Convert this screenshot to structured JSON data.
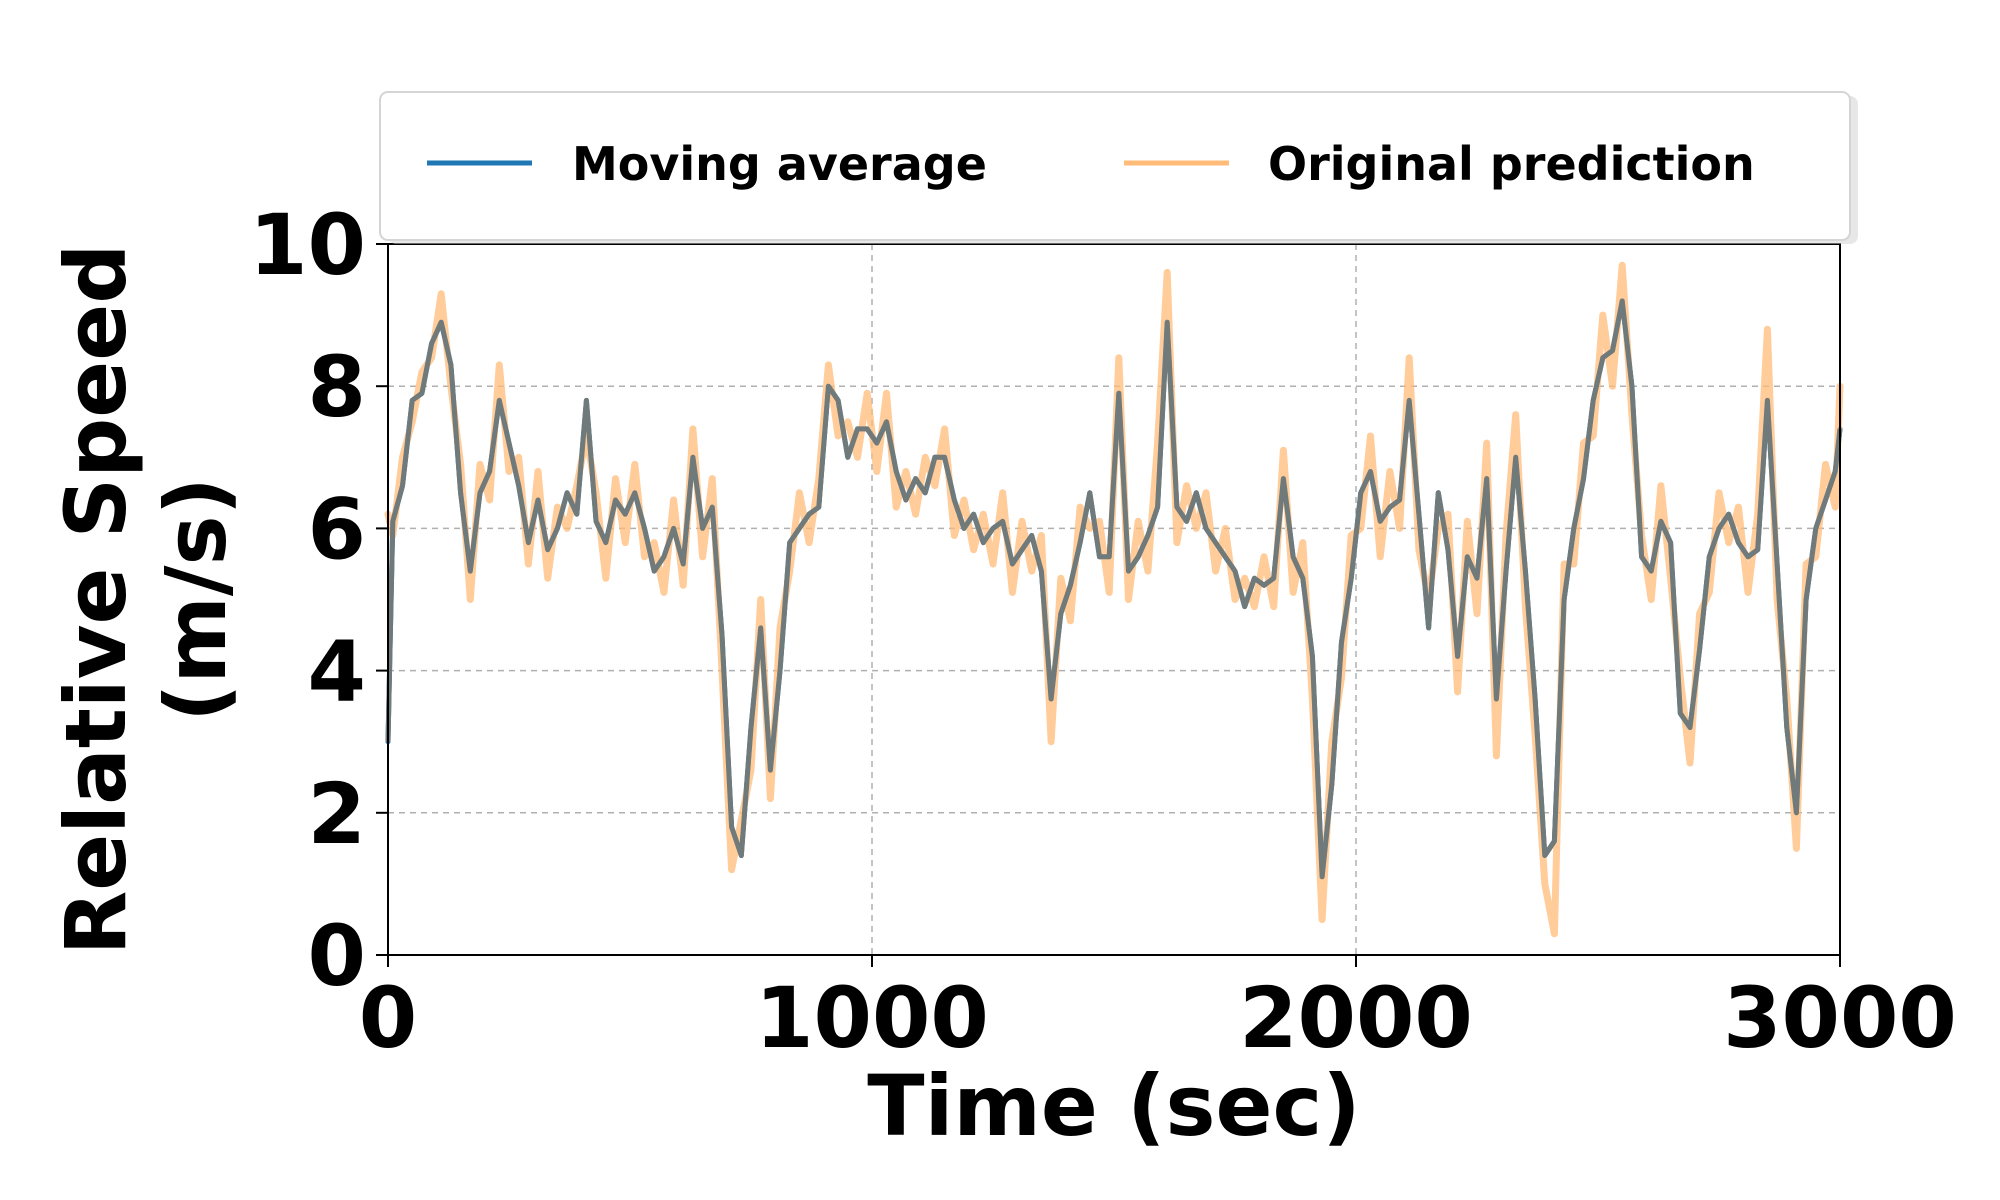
{
  "chart_data": {
    "type": "line",
    "title": "",
    "xlabel": "Time (sec)",
    "ylabel_lines": [
      "Relative Speed",
      "(m/s)"
    ],
    "xlim": [
      0,
      3000
    ],
    "ylim": [
      0,
      10
    ],
    "xticks": [
      0,
      1000,
      2000,
      3000
    ],
    "yticks": [
      0,
      2,
      4,
      6,
      8,
      10
    ],
    "xtick_labels": [
      "0",
      "1000",
      "2000",
      "3000"
    ],
    "ytick_labels": [
      "0",
      "2",
      "4",
      "6",
      "8",
      "10"
    ],
    "grid": true,
    "legend": {
      "position": "top",
      "columns": 2
    },
    "series": [
      {
        "name": "Moving average",
        "color": "#1f77b4",
        "x": [
          0,
          10,
          30,
          50,
          70,
          90,
          110,
          130,
          150,
          170,
          190,
          210,
          230,
          250,
          270,
          290,
          310,
          330,
          350,
          370,
          390,
          410,
          430,
          450,
          470,
          490,
          510,
          530,
          550,
          570,
          590,
          610,
          630,
          650,
          670,
          690,
          710,
          730,
          750,
          770,
          790,
          810,
          830,
          850,
          870,
          890,
          910,
          930,
          950,
          970,
          990,
          1010,
          1030,
          1050,
          1070,
          1090,
          1110,
          1130,
          1150,
          1170,
          1190,
          1210,
          1230,
          1250,
          1270,
          1290,
          1310,
          1330,
          1350,
          1370,
          1390,
          1410,
          1430,
          1450,
          1470,
          1490,
          1510,
          1530,
          1550,
          1570,
          1590,
          1610,
          1630,
          1650,
          1670,
          1690,
          1710,
          1730,
          1750,
          1770,
          1790,
          1810,
          1830,
          1850,
          1870,
          1890,
          1910,
          1930,
          1950,
          1970,
          1990,
          2010,
          2030,
          2050,
          2070,
          2090,
          2110,
          2130,
          2150,
          2170,
          2190,
          2210,
          2230,
          2250,
          2270,
          2290,
          2310,
          2330,
          2350,
          2370,
          2390,
          2410,
          2430,
          2450,
          2470,
          2490,
          2510,
          2530,
          2550,
          2570,
          2590,
          2610,
          2630,
          2650,
          2670,
          2690,
          2710,
          2730,
          2750,
          2770,
          2790,
          2810,
          2830,
          2850,
          2870,
          2890,
          2910,
          2930,
          2950,
          2970,
          2990,
          3000
        ],
        "y": [
          3.0,
          6.1,
          6.6,
          7.8,
          7.9,
          8.6,
          8.9,
          8.3,
          6.5,
          5.4,
          6.5,
          6.8,
          7.8,
          7.2,
          6.6,
          5.8,
          6.4,
          5.7,
          6.0,
          6.5,
          6.2,
          7.8,
          6.1,
          5.8,
          6.4,
          6.2,
          6.5,
          6.0,
          5.4,
          5.6,
          6.0,
          5.5,
          7.0,
          6.0,
          6.3,
          4.5,
          1.8,
          1.4,
          3.2,
          4.6,
          2.6,
          4.0,
          5.8,
          6.0,
          6.2,
          6.3,
          8.0,
          7.8,
          7.0,
          7.4,
          7.4,
          7.2,
          7.5,
          6.8,
          6.4,
          6.7,
          6.5,
          7.0,
          7.0,
          6.4,
          6.0,
          6.2,
          5.8,
          6.0,
          6.1,
          5.5,
          5.7,
          5.9,
          5.4,
          3.6,
          4.8,
          5.2,
          5.8,
          6.5,
          5.6,
          5.6,
          7.9,
          5.4,
          5.6,
          5.9,
          6.3,
          8.9,
          6.3,
          6.1,
          6.5,
          6.0,
          5.8,
          5.6,
          5.4,
          4.9,
          5.3,
          5.2,
          5.3,
          6.7,
          5.6,
          5.3,
          4.2,
          1.1,
          2.4,
          4.4,
          5.3,
          6.5,
          6.8,
          6.1,
          6.3,
          6.4,
          7.8,
          6.2,
          4.6,
          6.5,
          5.7,
          4.2,
          5.6,
          5.3,
          6.7,
          3.6,
          5.4,
          7.0,
          5.4,
          3.6,
          1.4,
          1.6,
          5.0,
          6.0,
          6.7,
          7.8,
          8.4,
          8.5,
          9.2,
          8.0,
          5.6,
          5.4,
          6.1,
          5.8,
          3.4,
          3.2,
          4.3,
          5.6,
          6.0,
          6.2,
          5.8,
          5.6,
          5.7,
          7.8,
          5.5,
          3.2,
          2.0,
          5.0,
          6.0,
          6.4,
          6.8,
          7.4
        ]
      },
      {
        "name": "Original prediction",
        "color": "#ffbb78",
        "x": [
          0,
          10,
          30,
          50,
          70,
          90,
          110,
          130,
          150,
          170,
          190,
          210,
          230,
          250,
          270,
          290,
          310,
          330,
          350,
          370,
          390,
          410,
          430,
          450,
          470,
          490,
          510,
          530,
          550,
          570,
          590,
          610,
          630,
          650,
          670,
          690,
          710,
          730,
          750,
          770,
          790,
          810,
          830,
          850,
          870,
          890,
          910,
          930,
          950,
          970,
          990,
          1010,
          1030,
          1050,
          1070,
          1090,
          1110,
          1130,
          1150,
          1170,
          1190,
          1210,
          1230,
          1250,
          1270,
          1290,
          1310,
          1330,
          1350,
          1370,
          1390,
          1410,
          1430,
          1450,
          1470,
          1490,
          1510,
          1530,
          1550,
          1570,
          1590,
          1610,
          1630,
          1650,
          1670,
          1690,
          1710,
          1730,
          1750,
          1770,
          1790,
          1810,
          1830,
          1850,
          1870,
          1890,
          1910,
          1930,
          1950,
          1970,
          1990,
          2010,
          2030,
          2050,
          2070,
          2090,
          2110,
          2130,
          2150,
          2170,
          2190,
          2210,
          2230,
          2250,
          2270,
          2290,
          2310,
          2330,
          2350,
          2370,
          2390,
          2410,
          2430,
          2450,
          2470,
          2490,
          2510,
          2530,
          2550,
          2570,
          2590,
          2610,
          2630,
          2650,
          2670,
          2690,
          2710,
          2730,
          2750,
          2770,
          2790,
          2810,
          2830,
          2850,
          2870,
          2890,
          2910,
          2930,
          2950,
          2970,
          2990,
          3000
        ],
        "y": [
          6.2,
          5.9,
          7.0,
          7.5,
          8.2,
          8.4,
          9.3,
          8.0,
          6.9,
          5.0,
          6.9,
          6.4,
          8.3,
          6.8,
          7.0,
          5.5,
          6.8,
          5.3,
          6.3,
          6.0,
          6.6,
          7.3,
          6.5,
          5.3,
          6.7,
          5.8,
          6.9,
          5.6,
          5.8,
          5.1,
          6.4,
          5.2,
          7.4,
          5.6,
          6.7,
          4.0,
          1.2,
          1.9,
          2.6,
          5.0,
          2.2,
          4.6,
          5.4,
          6.5,
          5.8,
          6.7,
          8.3,
          7.3,
          7.5,
          7.0,
          7.9,
          6.8,
          7.9,
          6.3,
          6.8,
          6.2,
          7.0,
          6.6,
          7.4,
          5.9,
          6.4,
          5.7,
          6.2,
          5.5,
          6.5,
          5.1,
          6.1,
          5.4,
          5.9,
          3.0,
          5.3,
          4.7,
          6.3,
          6.0,
          6.1,
          5.1,
          8.4,
          5.0,
          6.1,
          5.4,
          7.2,
          9.6,
          5.8,
          6.6,
          6.0,
          6.5,
          5.4,
          6.0,
          5.0,
          5.3,
          4.9,
          5.6,
          4.9,
          7.1,
          5.1,
          5.8,
          3.6,
          0.5,
          3.0,
          3.9,
          5.9,
          6.0,
          7.3,
          5.6,
          6.8,
          6.0,
          8.4,
          5.7,
          5.0,
          6.0,
          6.2,
          3.7,
          6.1,
          4.8,
          7.2,
          2.8,
          5.9,
          7.6,
          4.9,
          3.1,
          1.0,
          0.3,
          5.5,
          5.5,
          7.2,
          7.3,
          9.0,
          8.0,
          9.7,
          7.6,
          5.9,
          5.0,
          6.6,
          5.3,
          3.9,
          2.7,
          4.8,
          5.1,
          6.5,
          5.8,
          6.3,
          5.1,
          6.2,
          8.8,
          5.0,
          3.6,
          1.5,
          5.5,
          5.6,
          6.9,
          6.3,
          8.0
        ]
      }
    ]
  }
}
